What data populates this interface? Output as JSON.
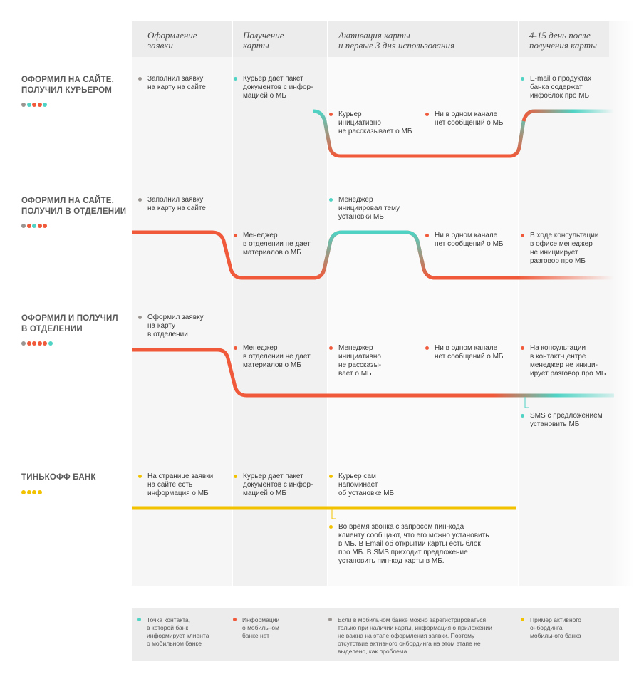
{
  "colors": {
    "teal": "#4fd3c4",
    "red": "#f0593a",
    "gray": "#9a9590",
    "yellow": "#f2c200"
  },
  "columns": [
    {
      "title": "Оформление\nзаявки"
    },
    {
      "title": "Получение\nкарты"
    },
    {
      "title": "Активация карты\nи первые 3 дня использования"
    },
    {
      "title": "4-15 день после\nполучения карты"
    }
  ],
  "rows": [
    {
      "label": "ОФОРМИЛ НА САЙТЕ,\nПОЛУЧИЛ КУРЬЕРОМ",
      "dots": [
        "gray",
        "teal",
        "red",
        "red",
        "teal"
      ],
      "notes": [
        {
          "text": "Заполнил заявку\nна карту на сайте",
          "color": "gray"
        },
        {
          "text": "Курьер дает пакет\nдокументов с инфор-\nмацией о МБ",
          "color": "teal"
        },
        {
          "text": "Курьер\nинициативно\nне рассказывает о МБ",
          "color": "red"
        },
        {
          "text": "Ни в одном канале\nнет сообщений о МБ",
          "color": "red"
        },
        {
          "text": "E-mail о продуктах\n банка содержат\nинфоблок про МБ",
          "color": "teal"
        }
      ]
    },
    {
      "label": "ОФОРМИЛ НА САЙТЕ,\nПОЛУЧИЛ В ОТДЕЛЕНИИ",
      "dots": [
        "gray",
        "red",
        "teal",
        "red",
        "red"
      ],
      "notes": [
        {
          "text": "Заполнил заявку\nна карту на сайте",
          "color": "gray"
        },
        {
          "text": "Менеджер\nв отделении не дает\nматериалов о МБ",
          "color": "red"
        },
        {
          "text": "Менеджер\nинициировал тему\nустановки МБ",
          "color": "teal"
        },
        {
          "text": "Ни в одном канале\nнет сообщений о МБ",
          "color": "red"
        },
        {
          "text": "В ходе консультации\nв офисе менеджер\nне инициирует\nразговор про МБ",
          "color": "red"
        }
      ]
    },
    {
      "label": "ОФОРМИЛ И ПОЛУЧИЛ\nВ ОТДЕЛЕНИИ",
      "dots": [
        "gray",
        "red",
        "red",
        "red",
        "red",
        "teal"
      ],
      "notes": [
        {
          "text": "Оформил заявку\nна карту\nв отделении",
          "color": "gray"
        },
        {
          "text": "Менеджер\nв отделении не дает\nматериалов о МБ",
          "color": "red"
        },
        {
          "text": "Менеджер\nинициативно\nне рассказы-\nвает о МБ",
          "color": "red"
        },
        {
          "text": "Ни в одном канале\nнет сообщений о МБ",
          "color": "red"
        },
        {
          "text": "На консультации\nв контакт-центре\nменеджер не иници-\nирует разговор про МБ",
          "color": "red"
        },
        {
          "text": "SMS с предложением\nустановить МБ",
          "color": "teal"
        }
      ]
    },
    {
      "label": "ТИНЬКОФФ БАНК",
      "dots": [
        "yellow",
        "yellow",
        "yellow",
        "yellow"
      ],
      "notes": [
        {
          "text": "На странице заявки\nна сайте есть\nинформация о МБ",
          "color": "yellow"
        },
        {
          "text": "Курьер дает пакет\nдокументов с инфор-\nмацией о МБ",
          "color": "yellow"
        },
        {
          "text": "Курьер сам\nнапоминает\nоб установке МБ",
          "color": "yellow"
        },
        {
          "text": "Во время звонка с запросом пин-кода\nклиенту сообщают, что его можно установить\nв МБ. В Email об открытии карты есть блок\nпро МБ. В SMS приходит предложение\nустановить пин-код карты в МБ.",
          "color": "yellow"
        }
      ]
    }
  ],
  "legend": [
    {
      "text": "Точка контакта,\nв которой банк\nинформирует клиента\nо мобильном банке",
      "color": "teal"
    },
    {
      "text": "Информации\nо мобильном\nбанке нет",
      "color": "red"
    },
    {
      "text": "Если в мобильном банке можно зарегистрироваться\nтолько при наличии карты, информация о приложении\nне важна на этапе оформления заявки. Поэтому\nотсутствие активного онбординга на этом этапе не\nвыделено, как проблема.",
      "color": "gray"
    },
    {
      "text": "Пример активного\nонбординга\nмобильного банка",
      "color": "yellow"
    }
  ]
}
